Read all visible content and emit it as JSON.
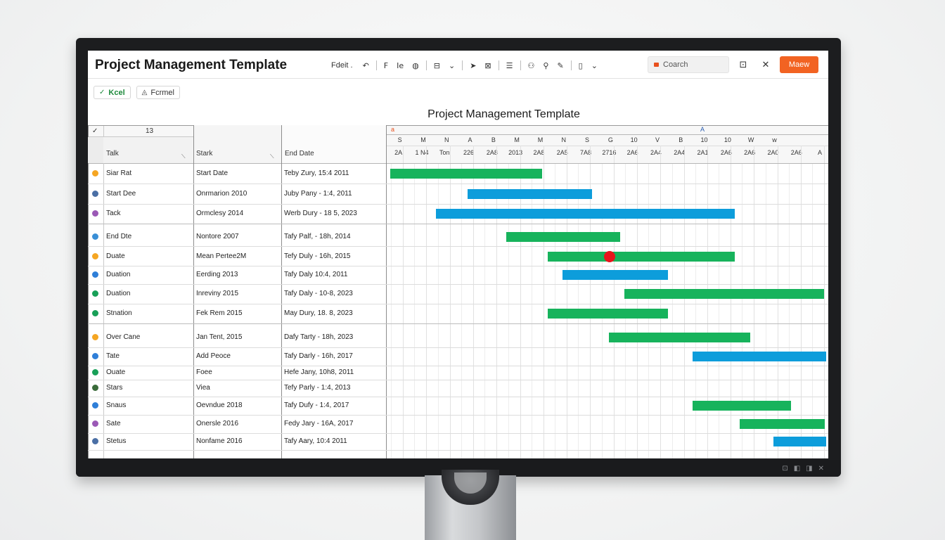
{
  "app": {
    "title": "Project Management Template",
    "toolbar_label": "Fdeit .",
    "search_placeholder": "Coarch",
    "primary_button": "Maew"
  },
  "subbar": {
    "excel_label": "Kcel",
    "format_label": "Fcrmel"
  },
  "document_title": "Project Management Template",
  "table": {
    "top_header": "13",
    "columns": [
      "Talk",
      "Stark",
      "End Date"
    ],
    "rows": [
      {
        "name": "Siar Rat",
        "start": "Start Date",
        "end": "Teby Zury, 15:4 2011",
        "icon_color": "#f5a623"
      },
      {
        "name": "Start Dee",
        "start": "Onrmarion 2010",
        "end": "Juby Pany - 1:4, 2011",
        "icon_color": "#4a6fa5"
      },
      {
        "name": "Tack",
        "start": "Ormclesy 2014",
        "end": "Werb Dury - 18 5, 2023",
        "icon_color": "#9b59b6"
      },
      {
        "name": "End Dte",
        "start": "Nontore 2007",
        "end": "Tafy Palf, - 18h, 2014",
        "icon_color": "#3a8fd6"
      },
      {
        "name": "Duate",
        "start": "Mean Pertee2M",
        "end": "Tefy Duly - 16h, 2015",
        "icon_color": "#f5a623"
      },
      {
        "name": "Duation",
        "start": "Eerding 2013",
        "end": "Tafy Daly 10:4, 2011",
        "icon_color": "#2f7fd8"
      },
      {
        "name": "Duation",
        "start": "Inreviny 2015",
        "end": "Tafy Daly - 10-8, 2023",
        "icon_color": "#18a058"
      },
      {
        "name": "Stnation",
        "start": "Fek Rem 2015",
        "end": "May Dury, 18. 8, 2023",
        "icon_color": "#18a058"
      },
      {
        "name": "Over Cane",
        "start": "Jan Tent, 2015",
        "end": "Dafy Tarty - 18h, 2023",
        "icon_color": "#f5a623"
      },
      {
        "name": "Tate",
        "start": "Add Peoce",
        "end": "Tafy Darly - 16h, 2017",
        "icon_color": "#2f7fd8"
      },
      {
        "name": "Ouate",
        "start": "Foee",
        "end": "Hefe Jany, 10h8, 2011",
        "icon_color": "#18a058"
      },
      {
        "name": "Stars",
        "start": "Viea",
        "end": "Tefy Parly - 1:4, 2013",
        "icon_color": "#3a6b3a"
      },
      {
        "name": "Snaus",
        "start": "Oevndue 2018",
        "end": "Tafy Dufy - 1:4, 2017",
        "icon_color": "#2f7fd8"
      },
      {
        "name": "Sate",
        "start": "Onersle 2016",
        "end": "Fedy Jary - 16A, 2017",
        "icon_color": "#9b59b6"
      },
      {
        "name": "Stetus",
        "start": "Nonfame 2016",
        "end": "Tafy Aary, 10:4 2011",
        "icon_color": "#4a6fa5"
      }
    ]
  },
  "gantt": {
    "top_marker_left": "a",
    "top_marker_mid": "A",
    "months": [
      "S",
      "M",
      "N",
      "A",
      "B",
      "M",
      "M",
      "N",
      "S",
      "G",
      "10",
      "V",
      "B",
      "10",
      "10",
      "W",
      "w"
    ],
    "days": [
      "2A",
      "1 N4",
      "Toni",
      "226",
      "2A8",
      "2013",
      "2A8",
      "2A5",
      "7A8",
      "2716",
      "2A6",
      "2A4",
      "2A4",
      "2A1",
      "2A6",
      "2A6",
      "2A0",
      "2A6",
      "A"
    ],
    "colors": {
      "green": "#17b35c",
      "blue": "#0d9ddb",
      "milestone": "#e8141c"
    }
  }
}
